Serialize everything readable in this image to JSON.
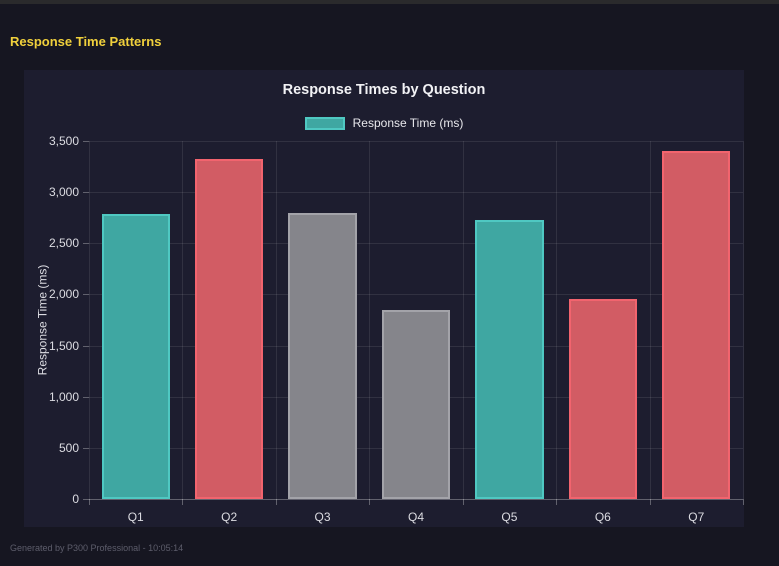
{
  "header": {
    "title": "Response Time Patterns"
  },
  "footer": {
    "text": "Generated by P300 Professional - 10:05:14"
  },
  "theme": {
    "accent_yellow": "#f0d03c",
    "page_background": "#161621",
    "panel_background": "#1d1d2f"
  },
  "chart_data": {
    "type": "bar",
    "title": "Response Times by Question",
    "legend": {
      "label": "Response Time (ms)",
      "swatch_fill": "#3fa7a2",
      "swatch_border": "#4fc8c2",
      "position": "top-center"
    },
    "categories": [
      "Q1",
      "Q2",
      "Q3",
      "Q4",
      "Q5",
      "Q6",
      "Q7"
    ],
    "series": [
      {
        "name": "Response Time (ms)",
        "values": [
          2790,
          3325,
          2800,
          1845,
          2730,
          1955,
          3405
        ]
      }
    ],
    "bar_styles": [
      {
        "fill": "#3fa7a2",
        "border": "#4fc8c2"
      },
      {
        "fill": "#d25c64",
        "border": "#f2646e"
      },
      {
        "fill": "#85858b",
        "border": "#a3a3a9"
      },
      {
        "fill": "#85858b",
        "border": "#a3a3a9"
      },
      {
        "fill": "#3fa7a2",
        "border": "#4fc8c2"
      },
      {
        "fill": "#d25c64",
        "border": "#f2646e"
      },
      {
        "fill": "#d25c64",
        "border": "#f2646e"
      }
    ],
    "xlabel": "",
    "ylabel": "Response Time (ms)",
    "ylim": [
      0,
      3500
    ],
    "ytick_step": 500,
    "ytick_labels": [
      "0",
      "500",
      "1,000",
      "1,500",
      "2,000",
      "2,500",
      "3,000",
      "3,500"
    ],
    "grid": true,
    "bar_width_fraction": 0.73
  }
}
